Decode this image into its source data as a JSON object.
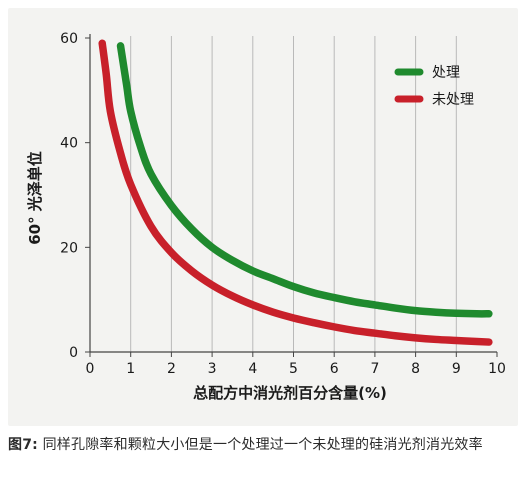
{
  "chart_data": {
    "type": "line",
    "xlabel": "总配方中消光剂百分含量(%)",
    "ylabel": "60° 光泽单位",
    "xlim": [
      0,
      10
    ],
    "ylim": [
      0,
      60
    ],
    "xticks": [
      "0",
      "1",
      "2",
      "3",
      "4",
      "5",
      "6",
      "7",
      "8",
      "9",
      "10"
    ],
    "yticks": [
      "0",
      "20",
      "40",
      "60"
    ],
    "grid": "vertical",
    "legend_position": "top-right",
    "series": [
      {
        "name": "处理",
        "color": "#1f8a2e",
        "x": [
          0.75,
          0.9,
          1.0,
          1.25,
          1.5,
          2.0,
          2.5,
          3.0,
          3.5,
          4.0,
          4.5,
          5.0,
          5.5,
          6.0,
          6.5,
          7.0,
          7.5,
          8.0,
          8.5,
          9.0,
          9.5,
          9.8
        ],
        "y": [
          58.5,
          51,
          46,
          39,
          34,
          28,
          23.5,
          20,
          17.5,
          15.5,
          14,
          12.5,
          11.3,
          10.4,
          9.6,
          9.0,
          8.4,
          7.9,
          7.6,
          7.4,
          7.3,
          7.3
        ]
      },
      {
        "name": "未处理",
        "color": "#c8202a",
        "x": [
          0.3,
          0.4,
          0.5,
          0.75,
          1.0,
          1.5,
          2.0,
          2.5,
          3.0,
          3.5,
          4.0,
          4.5,
          5.0,
          5.5,
          6.0,
          6.5,
          7.0,
          7.5,
          8.0,
          8.5,
          9.0,
          9.5,
          9.8
        ],
        "y": [
          59,
          53,
          46,
          38,
          32,
          24,
          19,
          15.5,
          12.8,
          10.7,
          9.0,
          7.6,
          6.5,
          5.6,
          4.8,
          4.1,
          3.6,
          3.1,
          2.7,
          2.4,
          2.2,
          2.0,
          1.9
        ]
      }
    ]
  },
  "caption": {
    "label": "图7:",
    "text": " 同样孔隙率和颗粒大小但是一个处理过一个未处理的硅消光剂消光效率"
  }
}
